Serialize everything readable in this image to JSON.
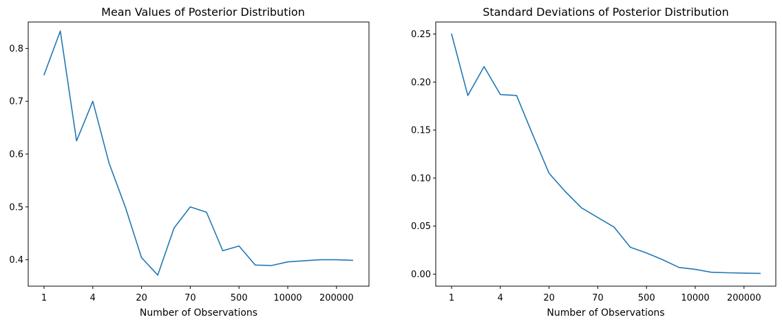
{
  "chart_data": [
    {
      "type": "line",
      "title": "Mean Values of Posterior Distribution",
      "xlabel": "Number of Observations",
      "ylabel": "",
      "x_tick_labels": [
        "1",
        "4",
        "20",
        "70",
        "500",
        "10000",
        "200000"
      ],
      "y_ticks": [
        0.4,
        0.5,
        0.6,
        0.7,
        0.8
      ],
      "y_tick_labels": [
        "0.4",
        "0.5",
        "0.6",
        "0.7",
        "0.8"
      ],
      "ylim": [
        0.35,
        0.85
      ],
      "grid": false,
      "color": "#1f77b4",
      "series": [
        {
          "values": [
            0.75,
            0.833,
            0.625,
            0.7,
            0.583,
            0.5,
            0.404,
            0.371,
            0.46,
            0.5,
            0.49,
            0.417,
            0.426,
            0.39,
            0.389,
            0.396,
            0.398,
            0.4,
            0.4,
            0.399
          ]
        }
      ]
    },
    {
      "type": "line",
      "title": "Standard Deviations of Posterior Distribution",
      "xlabel": "Number of Observations",
      "ylabel": "",
      "x_tick_labels": [
        "1",
        "4",
        "20",
        "70",
        "500",
        "10000",
        "200000"
      ],
      "y_ticks": [
        0.0,
        0.05,
        0.1,
        0.15,
        0.2,
        0.25
      ],
      "y_tick_labels": [
        "0.00",
        "0.05",
        "0.10",
        "0.15",
        "0.20",
        "0.25"
      ],
      "ylim": [
        -0.0125,
        0.2625
      ],
      "grid": false,
      "color": "#1f77b4",
      "series": [
        {
          "values": [
            0.25,
            0.186,
            0.216,
            0.187,
            0.186,
            0.145,
            0.105,
            0.086,
            0.069,
            0.059,
            0.049,
            0.028,
            0.022,
            0.015,
            0.007,
            0.005,
            0.002,
            0.0015,
            0.001,
            0.0008
          ]
        }
      ]
    }
  ]
}
